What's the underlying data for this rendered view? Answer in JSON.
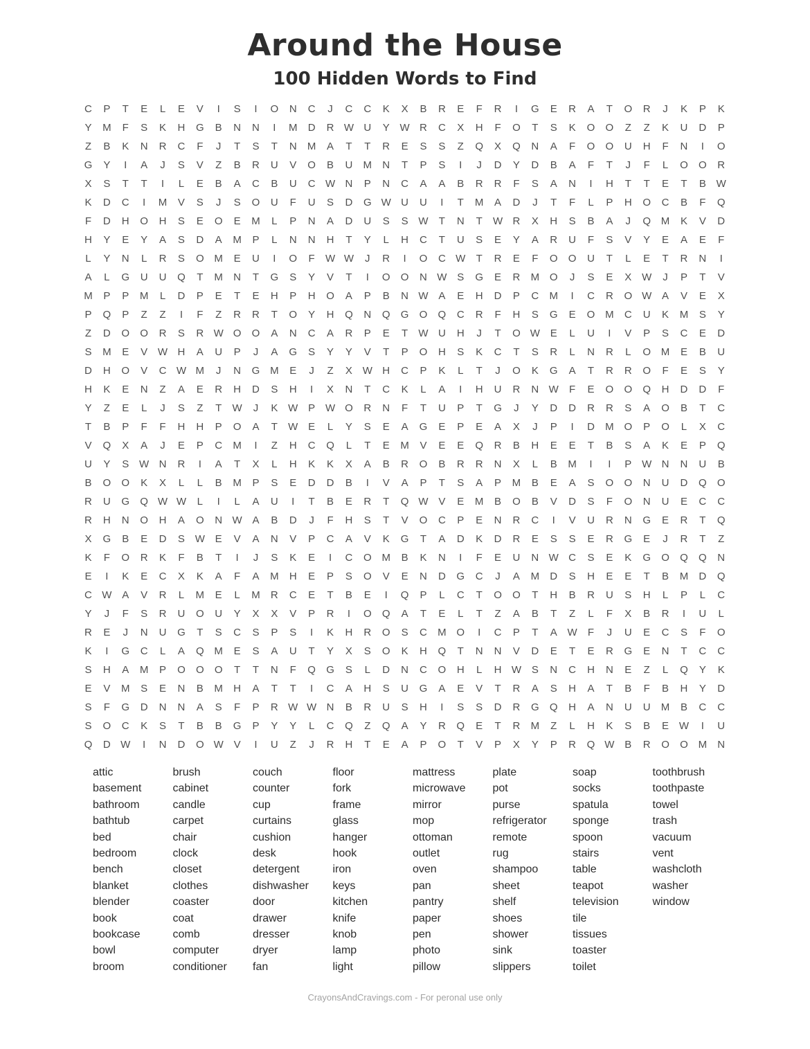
{
  "page": {
    "title": "Around the House",
    "subtitle": "100 Hidden Words to Find",
    "footer": "CrayonsAndCravings.com - For peronal use only"
  },
  "colors": {
    "background": "#ffffff",
    "title_text": "#2e2e2e",
    "grid_letter": "#4f4f4f",
    "word_text": "#2b2b2b",
    "footer_text": "#a3a3a3"
  },
  "grid": {
    "columns": 35,
    "row_count": 35,
    "rows": [
      "CPTELEVISIONCJCCKXBREFRIGERATORJKPK",
      "YMFSKHGBNNIMDRWUYWRCXHFOTSKOOZZKUDP",
      "ZBKNRCFJTSTNMATTRESSZQXQNAFOOUHFNIO",
      "GYIAJSVZBRUVOBUMNTPSIJDYDBAFTJFLOOR",
      "XSTTILEBACBUCWNPNCAABRRFSANIHTTETBW",
      "KDCIMVSJSOUFUSDGWUUITMADJTFLPHOCBFQ",
      "FDHOHSEOEMLPNADUSSWTNTWRXHSBAJQMKVD",
      "HYEYASDAMPLNNHTYLHCTUSEYARUFSVYEAEF",
      "LYNLRSOMEUIOFWWJRIOCWTREFOOUTLETRNI",
      "ALGUUQTMNTGSYVTIOONWSGERMOJSEXWJPTV",
      "MPPMLDPETEHPHOAPBNWAEHDPCMICROWAVEX",
      "PQPZZIFZRRTOYHQNQGOQCRFHSGEOMCUKMSY",
      "ZDOORSRWOOANCARPETWUHJTOWELUIVPSCED",
      "SMEVWHAUPJAGSYYVTPOHSKCTSRLNRLOMEBU",
      "DHOVCWMJNGMEJZXWHCPKLTJOKGATRROFESY",
      "HKENZAERHDSHIXNTCKLAIHURNWFEOOQHDDF",
      "YZELJSZTWJKWPWORNFTUPTGJYDDRRSAOBTC",
      "TBPFFHHPOATWELYSEAGEPEAXJPIDMOPOLXC",
      "VQXAJEPCMIZHCQLTEMVEEQRBHEETBSAKEPQ",
      "UYSWNRIATXLHKKXABROBRRNXLBMIIPWNNUB",
      "BOOKXLLBMPSEDDBIVAPTSAPMBEASOONUDQO",
      "RUGQWWLILAUITBERTQWVEMBOBVDSFONUECC",
      "RHNOHAONWABDJFHSTVOCPENRCIVURNGERTQ",
      "XGBEDSWEVANVPCAVKGTADKDRESSERGEJRTZ",
      "KFORKFBTIJSKEICOMBKNIFEUNWCSEKGOQQN",
      "EIKECXKAFAMHEPSOVENDGCJAMDSHEETBMDQ",
      "CWAVRLMELMRCETBEIQPLCTOOTHBRUSHLPLC",
      "YJFSRUOUYXXVPRIOQATELTZABTZLFXBRIUL",
      "REJNUGTSCSPSIKHROSCMOICPTAWFJUECSFO",
      "KIGCLAQMESAUTYXSOKHQTNNVDETERGENTCC",
      "SHAMPOOOTTNFQGSLDNCOHLHWSNCHNEZLQYK",
      "EVMSENBMHATTICAHSUGAEVTRASHATBFBHYD",
      "SFGDNNASFPRWWNBRUSHISSDRGQHANUUMBCC",
      "SOCKSTBBGPYYLCQZQAYRQETRMZLHKSBEWIU",
      "QDWINDOWVIUZJRHTEAPOTVPXYPRQWBROOMN"
    ]
  },
  "word_list": {
    "total_words": 100,
    "columns": [
      [
        "attic",
        "basement",
        "bathroom",
        "bathtub",
        "bed",
        "bedroom",
        "bench",
        "blanket",
        "blender",
        "book",
        "bookcase",
        "bowl",
        "broom"
      ],
      [
        "brush",
        "cabinet",
        "candle",
        "carpet",
        "chair",
        "clock",
        "closet",
        "clothes",
        "coaster",
        "coat",
        "comb",
        "computer",
        "conditioner"
      ],
      [
        "couch",
        "counter",
        "cup",
        "curtains",
        "cushion",
        "desk",
        "detergent",
        "dishwasher",
        "door",
        "drawer",
        "dresser",
        "dryer",
        "fan"
      ],
      [
        "floor",
        "fork",
        "frame",
        "glass",
        "hanger",
        "hook",
        "iron",
        "keys",
        "kitchen",
        "knife",
        "knob",
        "lamp",
        "light"
      ],
      [
        "mattress",
        "microwave",
        "mirror",
        "mop",
        "ottoman",
        "outlet",
        "oven",
        "pan",
        "pantry",
        "paper",
        "pen",
        "photo",
        "pillow"
      ],
      [
        "plate",
        "pot",
        "purse",
        "refrigerator",
        "remote",
        "rug",
        "shampoo",
        "sheet",
        "shelf",
        "shoes",
        "shower",
        "sink",
        "slippers"
      ],
      [
        "soap",
        "socks",
        "spatula",
        "sponge",
        "spoon",
        "stairs",
        "table",
        "teapot",
        "television",
        "tile",
        "tissues",
        "toaster",
        "toilet"
      ],
      [
        "toothbrush",
        "toothpaste",
        "towel",
        "trash",
        "vacuum",
        "vent",
        "washcloth",
        "washer",
        "window"
      ]
    ]
  }
}
